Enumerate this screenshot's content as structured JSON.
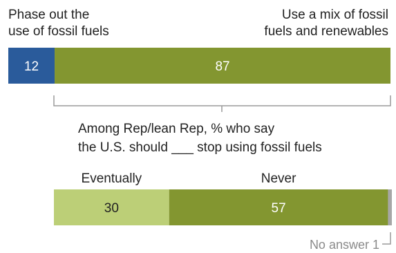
{
  "chart_data": [
    {
      "type": "bar",
      "orientation": "horizontal-stacked",
      "categories": [
        "Phase out the use of fossil fuels",
        "Use a mix of fossil fuels and renewables"
      ],
      "values": [
        12,
        87
      ],
      "colors": [
        "#2a5b9b",
        "#839630"
      ],
      "labels": {
        "left_line1": "Phase out the",
        "left_line2": "use of fossil fuels",
        "right_line1": "Use a mix of fossil",
        "right_line2": "fuels and renewables"
      }
    },
    {
      "type": "bar",
      "orientation": "horizontal-stacked",
      "title_line1": "Among Rep/lean Rep, % who say",
      "title_line2": "the U.S. should ___ stop using fossil fuels",
      "categories": [
        "Eventually",
        "Never",
        "No answer"
      ],
      "values": [
        30,
        57,
        1
      ],
      "colors": [
        "#bccf77",
        "#839630",
        "#a6a6a6"
      ],
      "no_answer_label": "No answer 1"
    }
  ]
}
